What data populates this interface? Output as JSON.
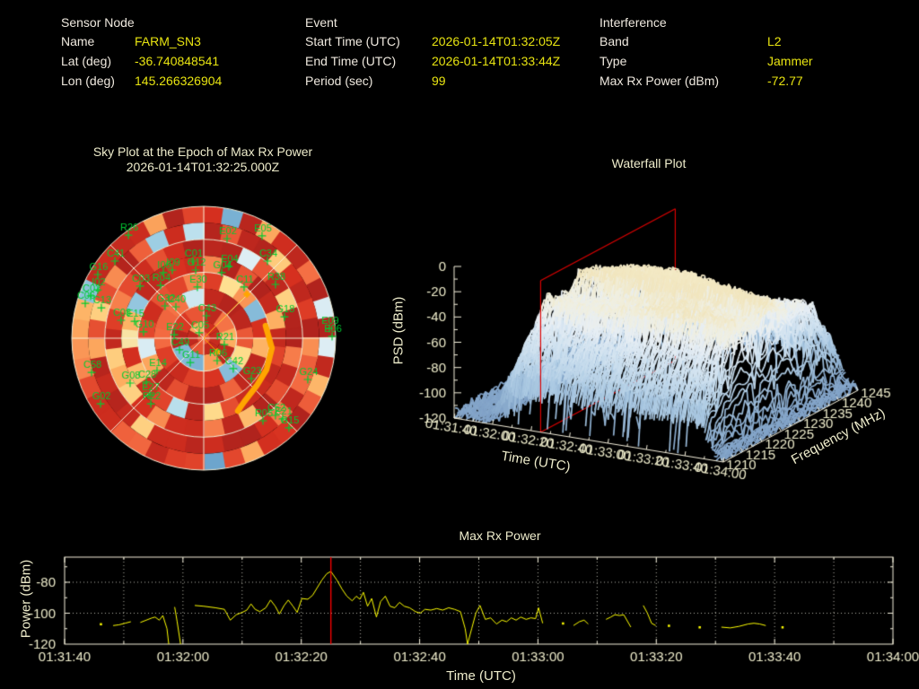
{
  "header": {
    "sections": [
      {
        "title": "Sensor Node",
        "rows": [
          {
            "label": "Name",
            "value": "FARM_SN3"
          },
          {
            "label": "Lat (deg)",
            "value": "-36.740848541"
          },
          {
            "label": "Lon (deg)",
            "value": "145.266326904"
          }
        ]
      },
      {
        "title": "Event",
        "rows": [
          {
            "label": "Start Time (UTC)",
            "value": "2026-01-14T01:32:05Z"
          },
          {
            "label": "End Time (UTC)",
            "value": "2026-01-14T01:33:44Z"
          },
          {
            "label": "Period (sec)",
            "value": "99"
          }
        ]
      },
      {
        "title": "Interference",
        "rows": [
          {
            "label": "Band",
            "value": "L2"
          },
          {
            "label": "Type",
            "value": "Jammer"
          },
          {
            "label": "Max Rx Power (dBm)",
            "value": "-72.77"
          }
        ]
      }
    ]
  },
  "sky_plot": {
    "title": "Sky Plot at the Epoch of Max Rx Power",
    "epoch": "2026-01-14T01:32:25.000Z"
  },
  "waterfall": {
    "title": "Waterfall Plot",
    "zlabel": "PSD (dBm)",
    "xlabel": "Time (UTC)",
    "ylabel": "Frequency (MHz)"
  },
  "power_plot": {
    "title": "Max Rx Power",
    "ylabel": "Power (dBm)",
    "xlabel": "Time (UTC)"
  },
  "colors": {
    "background": "#000000",
    "plot_text": "#eeeccb",
    "header_label": "#efe9df",
    "value_text": "#e8e411",
    "series_line": "#ffff00",
    "epoch_line": "#ff0000",
    "marker_orange": "#ffa500",
    "satellite_label": "#00cd32",
    "grid": "#f5f0dc",
    "red_frame": "#dd0000"
  },
  "chart_data": [
    {
      "type": "heatmap",
      "id": "sky_plot",
      "projection": "polar",
      "title": "Sky Plot at the Epoch of Max Rx Power",
      "epoch": "2026-01-14T01:32:25.000Z",
      "colormap": "RdYlBu reversed (red = high received power, blue = low)",
      "elevation_rings_deg": [
        0,
        22.5,
        45,
        67.5
      ],
      "azimuth_lines_deg": [
        0,
        45,
        90,
        135,
        180,
        225,
        270,
        315
      ],
      "satellites": [
        [
          "R26",
          -0.571,
          -0.782
        ],
        [
          "E02",
          0.177,
          -0.755
        ],
        [
          "E05",
          0.442,
          -0.776
        ],
        [
          "C41",
          -0.673,
          -0.585
        ],
        [
          "C34",
          0.483,
          -0.585
        ],
        [
          "G16",
          -0.803,
          -0.483
        ],
        [
          "C01",
          -0.082,
          -0.585
        ],
        [
          "G12",
          -0.061,
          -0.517
        ],
        [
          "E04",
          0.19,
          -0.544
        ],
        [
          "G04",
          0.136,
          -0.497
        ],
        [
          "C03",
          -0.483,
          -0.395
        ],
        [
          "R04",
          -0.327,
          -0.401
        ],
        [
          "I06",
          -0.306,
          -0.497
        ],
        [
          "I09",
          -0.238,
          -0.517
        ],
        [
          "I02",
          -0.803,
          -0.367
        ],
        [
          "C02",
          -0.857,
          -0.32
        ],
        [
          "C06",
          -0.898,
          -0.265
        ],
        [
          "C13",
          -0.776,
          -0.231
        ],
        [
          "C08",
          -0.626,
          -0.136
        ],
        [
          "E15",
          -0.524,
          -0.129
        ],
        [
          "E30",
          -0.048,
          -0.388
        ],
        [
          "C40",
          -0.211,
          -0.238
        ],
        [
          "G32",
          -0.293,
          -0.245
        ],
        [
          "C43",
          0.02,
          -0.17
        ],
        [
          "C11",
          0.306,
          -0.388
        ],
        [
          "R38",
          0.544,
          -0.408
        ],
        [
          "G18",
          0.612,
          -0.163
        ],
        [
          "E09",
          0.952,
          -0.075
        ],
        [
          "E06",
          0.973,
          -0.014
        ],
        [
          "G10",
          -0.456,
          -0.048
        ],
        [
          "E22",
          -0.224,
          -0.027
        ],
        [
          "C05",
          -0.034,
          -0.041
        ],
        [
          "R21",
          0.156,
          0.048
        ],
        [
          "C49",
          -0.184,
          0.088
        ],
        [
          "R06",
          0.102,
          0.17
        ],
        [
          "G11",
          -0.102,
          0.184
        ],
        [
          "C42",
          0.224,
          0.231
        ],
        [
          "E14",
          -0.354,
          0.245
        ],
        [
          "C58",
          -0.85,
          0.259
        ],
        [
          "G23",
          0.361,
          0.306
        ],
        [
          "G24",
          0.789,
          0.313
        ],
        [
          "G08",
          -0.558,
          0.34
        ],
        [
          "C28",
          -0.435,
          0.333
        ],
        [
          "E27",
          -0.408,
          0.429
        ],
        [
          "R22",
          -0.401,
          0.497
        ],
        [
          "G02",
          -0.782,
          0.497
        ],
        [
          "C52",
          0.544,
          0.585
        ],
        [
          "E21",
          0.599,
          0.612
        ],
        [
          "R05",
          0.449,
          0.626
        ],
        [
          "G15",
          0.646,
          0.68
        ]
      ],
      "interference_track": [
        [
          0.469,
          -0.095
        ],
        [
          0.517,
          0.075
        ],
        [
          0.476,
          0.238
        ],
        [
          0.401,
          0.361
        ],
        [
          0.306,
          0.483
        ],
        [
          0.259,
          0.551
        ]
      ],
      "bearing_rays": [
        [
          [
            0,
            0
          ],
          [
            0.327,
            -0.333
          ]
        ],
        [
          [
            0,
            0
          ],
          [
            0.102,
            0.102
          ]
        ]
      ]
    },
    {
      "type": "surface",
      "id": "waterfall",
      "title": "Waterfall Plot",
      "xlabel": "Time (UTC)",
      "x_ticks": [
        "01:31:40",
        "01:32:00",
        "01:32:20",
        "01:32:40",
        "01:33:00",
        "01:33:20",
        "01:33:40",
        "01:34:00"
      ],
      "ylabel": "Frequency (MHz)",
      "y_ticks": [
        "1210",
        "1215",
        "1220",
        "1225",
        "1230",
        "1235",
        "1240",
        "1245"
      ],
      "zlabel": "PSD (dBm)",
      "z_ticks": [
        "0",
        "-20",
        "-40",
        "-60",
        "-80",
        "-100",
        "-120"
      ],
      "zlim": [
        -120,
        0
      ],
      "epoch_marker": {
        "time": "01:32:25",
        "color": "#dd0000"
      },
      "approx_psd_dbm_grid": {
        "freq_mhz": [
          1210,
          1215,
          1220,
          1225,
          1230,
          1235,
          1240,
          1245
        ],
        "time_offset_s": [
          0,
          20,
          40,
          60,
          80,
          100,
          120,
          140
        ],
        "rows": [
          [
            -115,
            -100,
            -98,
            -97,
            -98,
            -99,
            -100,
            -115
          ],
          [
            -115,
            -60,
            -45,
            -42,
            -44,
            -46,
            -60,
            -115
          ],
          [
            -115,
            -40,
            -28,
            -25,
            -27,
            -30,
            -45,
            -115
          ],
          [
            -115,
            -35,
            -22,
            -20,
            -22,
            -26,
            -40,
            -115
          ],
          [
            -115,
            -38,
            -25,
            -22,
            -24,
            -28,
            -42,
            -115
          ],
          [
            -115,
            -45,
            -30,
            -27,
            -29,
            -33,
            -48,
            -115
          ],
          [
            -115,
            -60,
            -45,
            -42,
            -44,
            -48,
            -62,
            -115
          ],
          [
            -115,
            -95,
            -90,
            -88,
            -90,
            -92,
            -96,
            -115
          ]
        ]
      }
    },
    {
      "type": "line",
      "id": "max_rx_power",
      "title": "Max Rx Power",
      "xlabel": "Time (UTC)",
      "ylabel": "Power (dBm)",
      "x_ticks": [
        "01:31:40",
        "01:32:00",
        "01:32:20",
        "01:32:40",
        "01:33:00",
        "01:33:20",
        "01:33:40",
        "01:34:00"
      ],
      "x_range_s": [
        0,
        140
      ],
      "ylim": [
        -120,
        -63.8
      ],
      "y_ticks": [
        -80,
        -100,
        -120
      ],
      "line_color": "#ffff00",
      "epoch_line": {
        "time_s": 45,
        "label": "01:32:25",
        "color": "#ff0000"
      },
      "segments_t_s_dbm": [
        [
          [
            6.1,
            -107
          ]
        ],
        [
          [
            8.2,
            -108
          ],
          [
            9.2,
            -107.5
          ],
          [
            10.2,
            -106.5
          ],
          [
            11.2,
            -105.5
          ]
        ],
        [
          [
            12.8,
            -106
          ],
          [
            13.8,
            -104.5
          ],
          [
            14.8,
            -103
          ],
          [
            15.3,
            -102.5
          ],
          [
            16,
            -104.5
          ],
          [
            16.6,
            -101.5
          ],
          [
            17.3,
            -110
          ],
          [
            17.6,
            -120
          ]
        ],
        [
          [
            18.6,
            -96
          ],
          [
            19,
            -105
          ],
          [
            19.6,
            -120
          ]
        ],
        [
          [
            22,
            -95
          ],
          [
            23.5,
            -95.5
          ],
          [
            25.5,
            -96.5
          ],
          [
            27,
            -97.5
          ],
          [
            28,
            -104.5
          ],
          [
            29,
            -101
          ],
          [
            30,
            -99.5
          ],
          [
            30.8,
            -98
          ],
          [
            31.5,
            -94
          ],
          [
            32.2,
            -97.5
          ],
          [
            33,
            -99
          ],
          [
            34,
            -96.5
          ],
          [
            34.8,
            -91.5
          ],
          [
            35.6,
            -95.5
          ],
          [
            36.3,
            -100.5
          ],
          [
            37.1,
            -95
          ],
          [
            37.8,
            -91.5
          ],
          [
            38.6,
            -95.5
          ],
          [
            39.3,
            -99.5
          ],
          [
            40.1,
            -90.5
          ],
          [
            41.1,
            -91
          ],
          [
            41.9,
            -88.5
          ],
          [
            42.7,
            -83.5
          ],
          [
            43.5,
            -78.5
          ],
          [
            44.3,
            -74.5
          ],
          [
            45,
            -73
          ],
          [
            46,
            -78.5
          ],
          [
            46.9,
            -84.5
          ],
          [
            47.7,
            -89
          ],
          [
            48.6,
            -92
          ],
          [
            49.3,
            -89
          ],
          [
            49.9,
            -91
          ],
          [
            50.5,
            -86.5
          ],
          [
            51.2,
            -95.5
          ],
          [
            51.9,
            -90.5
          ],
          [
            52.7,
            -102.5
          ],
          [
            53.4,
            -92.5
          ],
          [
            54.2,
            -89
          ],
          [
            55,
            -95.5
          ],
          [
            55.8,
            -96.5
          ],
          [
            56.6,
            -93
          ],
          [
            57.4,
            -95.5
          ],
          [
            58.3,
            -96.5
          ],
          [
            59.3,
            -99
          ],
          [
            60.1,
            -100
          ],
          [
            60.9,
            -97.5
          ],
          [
            61.9,
            -98
          ],
          [
            62.9,
            -97
          ],
          [
            63.9,
            -98
          ],
          [
            64.9,
            -96.5
          ],
          [
            65.9,
            -97.5
          ],
          [
            66.9,
            -99
          ],
          [
            67.7,
            -110
          ],
          [
            68.1,
            -120
          ],
          [
            68.8,
            -110
          ],
          [
            69.5,
            -100
          ],
          [
            70.2,
            -95
          ],
          [
            71.1,
            -104
          ],
          [
            72,
            -103
          ],
          [
            73,
            -107
          ],
          [
            73.9,
            -104.5
          ],
          [
            74.7,
            -105.5
          ],
          [
            75.5,
            -103
          ],
          [
            76.3,
            -104.5
          ],
          [
            77.1,
            -102.5
          ],
          [
            78,
            -104
          ],
          [
            78.8,
            -103
          ],
          [
            79.6,
            -103.5
          ],
          [
            80.1,
            -96.5
          ],
          [
            80.8,
            -106.5
          ]
        ],
        [
          [
            84.2,
            -106.5
          ]
        ],
        [
          [
            86,
            -108
          ],
          [
            87,
            -105.5
          ],
          [
            87.8,
            -104.5
          ],
          [
            88.5,
            -107
          ]
        ],
        [
          [
            91.5,
            -104
          ],
          [
            92.3,
            -102.5
          ],
          [
            93,
            -101
          ],
          [
            93.8,
            -101.5
          ],
          [
            94.5,
            -101
          ],
          [
            95.7,
            -109
          ]
        ],
        [
          [
            97.8,
            -95
          ],
          [
            98.5,
            -100
          ],
          [
            99.2,
            -106.5
          ],
          [
            99.9,
            -108
          ]
        ],
        [
          [
            102.1,
            -108
          ]
        ],
        [
          [
            107.3,
            -109
          ]
        ],
        [
          [
            111,
            -109
          ],
          [
            112.5,
            -109.5
          ],
          [
            114,
            -108.5
          ],
          [
            115.5,
            -107
          ],
          [
            116.5,
            -106.5
          ],
          [
            117.5,
            -107
          ],
          [
            118.5,
            -108
          ]
        ],
        [
          [
            121.3,
            -109
          ]
        ]
      ]
    }
  ]
}
